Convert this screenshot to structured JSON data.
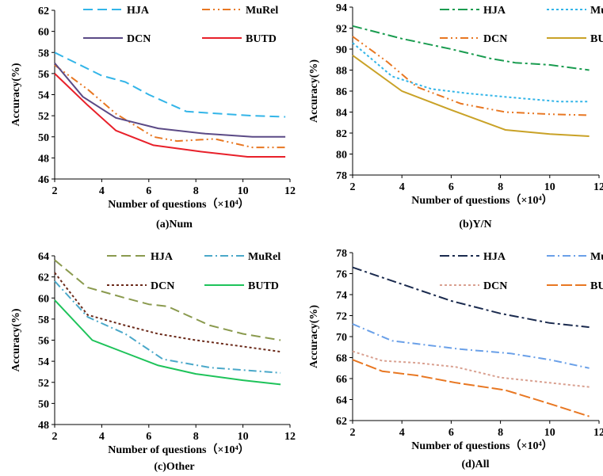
{
  "chart_data": [
    {
      "type": "line",
      "caption": "(a)Num",
      "xlabel": "Number of questions（×10⁴）",
      "ylabel": "Accuracy(%)",
      "xlim": [
        2,
        12
      ],
      "ylim": [
        46,
        62
      ],
      "xticks": [
        2,
        4,
        6,
        8,
        10,
        12
      ],
      "yticks": [
        46,
        48,
        50,
        52,
        54,
        56,
        58,
        60,
        62
      ],
      "legend_position": "top",
      "series": [
        {
          "name": "HJA",
          "color": "#33b5e8",
          "dash": "12,6",
          "x": [
            2,
            4,
            5,
            6,
            7.6,
            9,
            10.4,
            11.8
          ],
          "y": [
            58,
            55.8,
            55.2,
            54,
            52.4,
            52.2,
            52,
            51.9
          ]
        },
        {
          "name": "MuRel",
          "color": "#e87722",
          "dash": "10,4,2,4,2,4",
          "x": [
            2,
            3.4,
            4.6,
            6.2,
            7.2,
            8.8,
            10.4,
            11.8
          ],
          "y": [
            56.8,
            54.5,
            52.2,
            50,
            49.6,
            49.8,
            49,
            49
          ]
        },
        {
          "name": "DCN",
          "color": "#5b4a86",
          "dash": "",
          "x": [
            2,
            3.2,
            4.6,
            6.4,
            8.4,
            10.4,
            11.8
          ],
          "y": [
            57,
            53.8,
            51.8,
            50.8,
            50.3,
            50,
            50
          ]
        },
        {
          "name": "BUTD",
          "color": "#e8202a",
          "dash": "",
          "x": [
            2,
            3.4,
            4.6,
            6.2,
            8.2,
            10.2,
            11.8
          ],
          "y": [
            56,
            53,
            50.6,
            49.2,
            48.6,
            48.1,
            48.1
          ]
        }
      ]
    },
    {
      "type": "line",
      "caption": "(b)Y/N",
      "xlabel": "Number of questions（×10⁴）",
      "ylabel": "Accuracy(%)",
      "xlim": [
        2,
        12
      ],
      "ylim": [
        78,
        94
      ],
      "xticks": [
        2,
        4,
        6,
        8,
        10,
        12
      ],
      "yticks": [
        78,
        80,
        82,
        84,
        86,
        88,
        90,
        92,
        94
      ],
      "legend_position": "top",
      "series": [
        {
          "name": "HJA",
          "color": "#1a9c50",
          "dash": "12,4,3,4",
          "x": [
            2,
            4,
            6,
            7.6,
            8.6,
            10,
            11.6
          ],
          "y": [
            92.2,
            91,
            90,
            89.1,
            88.7,
            88.5,
            88
          ]
        },
        {
          "name": "MuRel",
          "color": "#33b5e8",
          "dash": "3,3",
          "x": [
            2,
            3.6,
            5.2,
            6.6,
            8.4,
            10.4,
            11.6
          ],
          "y": [
            90.6,
            87.4,
            86.2,
            85.8,
            85.4,
            85,
            85
          ]
        },
        {
          "name": "DCN",
          "color": "#e87722",
          "dash": "10,4,2,4,2,4",
          "x": [
            2,
            3.4,
            4.6,
            6.4,
            8.2,
            10,
            11.6
          ],
          "y": [
            91.2,
            88.8,
            86.4,
            84.8,
            84,
            83.8,
            83.7
          ]
        },
        {
          "name": "BUTD",
          "color": "#c9a227",
          "dash": "",
          "x": [
            2,
            4,
            6,
            8.2,
            10,
            11.6
          ],
          "y": [
            89.4,
            86,
            84.2,
            82.3,
            81.9,
            81.7
          ]
        }
      ]
    },
    {
      "type": "line",
      "caption": "(c)Other",
      "xlabel": "Number of questions（×10⁴）",
      "ylabel": "Accuracy(%)",
      "xlim": [
        2,
        12
      ],
      "ylim": [
        48,
        64
      ],
      "xticks": [
        2,
        4,
        6,
        8,
        10,
        12
      ],
      "yticks": [
        48,
        50,
        52,
        54,
        56,
        58,
        60,
        62,
        64
      ],
      "legend_position": "top",
      "series": [
        {
          "name": "HJA",
          "color": "#8a9a4e",
          "dash": "12,6",
          "x": [
            2,
            3.4,
            5,
            6,
            6.8,
            7.6,
            8.6,
            10,
            11.6
          ],
          "y": [
            63.6,
            61,
            60,
            59.4,
            59.2,
            58.4,
            57.4,
            56.6,
            56
          ]
        },
        {
          "name": "MuRel",
          "color": "#4aa8c9",
          "dash": "10,4,2,4",
          "x": [
            2,
            3.4,
            5,
            6.6,
            8.6,
            10.4,
            11.6
          ],
          "y": [
            61.6,
            58.2,
            56.6,
            54.2,
            53.4,
            53.1,
            52.9
          ]
        },
        {
          "name": "DCN",
          "color": "#6b2a1a",
          "dash": "3,3",
          "x": [
            2,
            3.4,
            5,
            6.4,
            8,
            10,
            11.6
          ],
          "y": [
            62.4,
            58.4,
            57.4,
            56.6,
            56,
            55.4,
            54.9
          ]
        },
        {
          "name": "BUTD",
          "color": "#1ec35a",
          "dash": "",
          "x": [
            2,
            3.6,
            5,
            6.4,
            8,
            10,
            11.6
          ],
          "y": [
            59.8,
            56,
            54.8,
            53.6,
            52.8,
            52.2,
            51.8
          ]
        }
      ]
    },
    {
      "type": "line",
      "caption": "(d)All",
      "xlabel": "Number of questions（×10⁴）",
      "ylabel": "Accuracy(%)",
      "xlim": [
        2,
        12
      ],
      "ylim": [
        62,
        78
      ],
      "xticks": [
        2,
        4,
        6,
        8,
        10,
        12
      ],
      "yticks": [
        62,
        64,
        66,
        68,
        70,
        72,
        74,
        76,
        78
      ],
      "legend_position": "top",
      "series": [
        {
          "name": "HJA",
          "color": "#1a2a4e",
          "dash": "12,4,3,4",
          "x": [
            2,
            4,
            6,
            8,
            10,
            11.6
          ],
          "y": [
            76.6,
            75,
            73.4,
            72.2,
            71.3,
            70.9
          ]
        },
        {
          "name": "MuRel",
          "color": "#6aa0e8",
          "dash": "10,4,2,4",
          "x": [
            2,
            3.6,
            5,
            6.4,
            8.4,
            10,
            11.6
          ],
          "y": [
            71.2,
            69.6,
            69.2,
            68.8,
            68.4,
            67.8,
            67
          ]
        },
        {
          "name": "DCN",
          "color": "#d9a090",
          "dash": "3,3",
          "x": [
            2,
            3.2,
            4.6,
            6.2,
            8,
            10,
            11.6
          ],
          "y": [
            68.6,
            67.7,
            67.5,
            67.1,
            66.1,
            65.6,
            65.2
          ]
        },
        {
          "name": "BUTD",
          "color": "#e87722",
          "dash": "14,4",
          "x": [
            2,
            3.2,
            4.6,
            6.2,
            8.2,
            10,
            11.6
          ],
          "y": [
            67.8,
            66.7,
            66.3,
            65.6,
            64.9,
            63.6,
            62.4
          ]
        }
      ]
    }
  ]
}
